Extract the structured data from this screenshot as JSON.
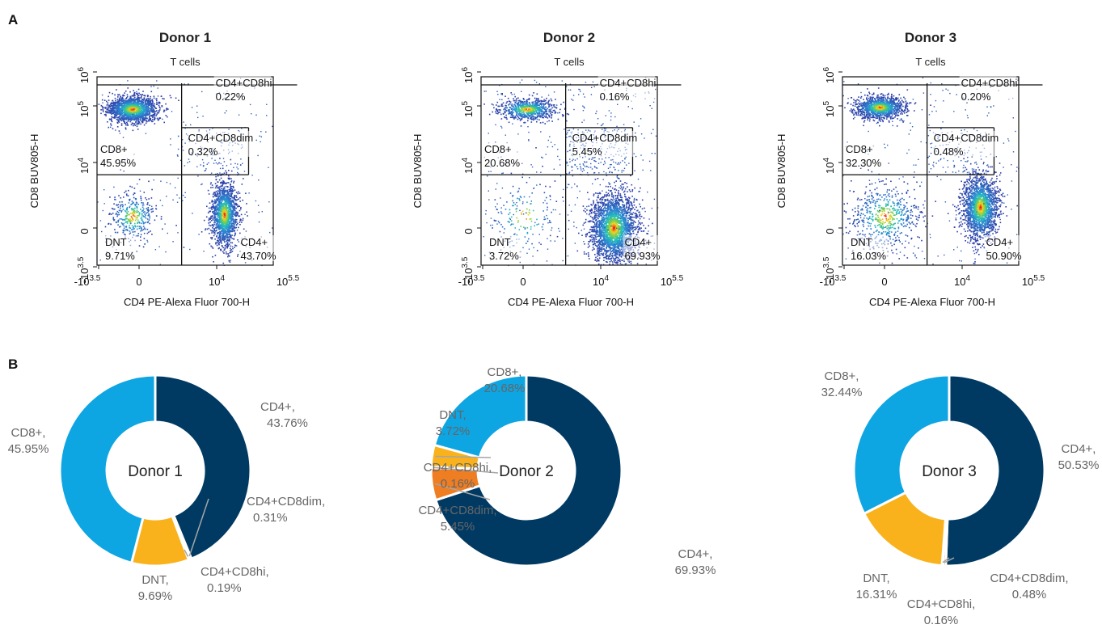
{
  "panel_labels": {
    "a": "A",
    "b": "B"
  },
  "colors": {
    "cd4": "#003a63",
    "cd8": "#0ea5e3",
    "dnt": "#f9b21c",
    "cd4cd8hi": "#f29a18",
    "cd4cd8dim": "#ef7d22",
    "pie_label": "#666666",
    "leader": "#a6a6a6",
    "density_low": "#2c3fa8",
    "density_high": "#e0201a"
  },
  "chart_data": [
    {
      "type": "scatter",
      "panel": "A",
      "donor": "Donor 1",
      "title": "T cells",
      "xlabel": "CD4 PE-Alexa Fluor 700-H",
      "ylabel": "CD8 BUV805-H",
      "x_ticks": [
        "-10^3.5",
        "0",
        "10^4",
        "10^5.5"
      ],
      "y_ticks": [
        "-10^3.5",
        "0",
        "10^4",
        "10^5",
        "10^6"
      ],
      "plot_style": "density pseudocolor dot plot",
      "gates": [
        {
          "name": "CD4+CD8hi",
          "percent": 0.22
        },
        {
          "name": "CD4+CD8dim",
          "percent": 0.32
        },
        {
          "name": "CD8+",
          "percent": 45.95
        },
        {
          "name": "DNT",
          "percent": 9.71
        },
        {
          "name": "CD4+",
          "percent": 43.7
        }
      ],
      "gate_labels": {
        "hi_name": "CD4+CD8hi",
        "hi_val": "0.22%",
        "dim_name": "CD4+CD8dim",
        "dim_val": "0.32%",
        "cd8_name": "CD8+",
        "cd8_val": "45.95%",
        "dnt_name": "DNT",
        "dnt_val": "9.71%",
        "cd4_name": "CD4+",
        "cd4_val": "43.70%"
      }
    },
    {
      "type": "scatter",
      "panel": "A",
      "donor": "Donor 2",
      "title": "T cells",
      "xlabel": "CD4 PE-Alexa Fluor 700-H",
      "ylabel": "CD8 BUV805-H",
      "x_ticks": [
        "-10^3.5",
        "0",
        "10^4",
        "10^5.5"
      ],
      "y_ticks": [
        "-10^3.5",
        "0",
        "10^4",
        "10^5",
        "10^6"
      ],
      "plot_style": "density pseudocolor dot plot",
      "gates": [
        {
          "name": "CD4+CD8hi",
          "percent": 0.16
        },
        {
          "name": "CD4+CD8dim",
          "percent": 5.45
        },
        {
          "name": "CD8+",
          "percent": 20.68
        },
        {
          "name": "DNT",
          "percent": 3.72
        },
        {
          "name": "CD4+",
          "percent": 69.93
        }
      ],
      "gate_labels": {
        "hi_name": "CD4+CD8hi",
        "hi_val": "0.16%",
        "dim_name": "CD4+CD8dim",
        "dim_val": "5.45%",
        "cd8_name": "CD8+",
        "cd8_val": "20.68%",
        "dnt_name": "DNT",
        "dnt_val": "3.72%",
        "cd4_name": "CD4+",
        "cd4_val": "69.93%"
      }
    },
    {
      "type": "scatter",
      "panel": "A",
      "donor": "Donor 3",
      "title": "T cells",
      "xlabel": "CD4 PE-Alexa Fluor 700-H",
      "ylabel": "CD8 BUV805-H",
      "x_ticks": [
        "-10^3.5",
        "0",
        "10^4",
        "10^5.5"
      ],
      "y_ticks": [
        "-10^3.5",
        "0",
        "10^4",
        "10^5",
        "10^6"
      ],
      "plot_style": "density pseudocolor dot plot",
      "gates": [
        {
          "name": "CD4+CD8hi",
          "percent": 0.2
        },
        {
          "name": "CD4+CD8dim",
          "percent": 0.48
        },
        {
          "name": "CD8+",
          "percent": 32.3
        },
        {
          "name": "DNT",
          "percent": 16.03
        },
        {
          "name": "CD4+",
          "percent": 50.9
        }
      ],
      "gate_labels": {
        "hi_name": "CD4+CD8hi",
        "hi_val": "0.20%",
        "dim_name": "CD4+CD8dim",
        "dim_val": "0.48%",
        "cd8_name": "CD8+",
        "cd8_val": "32.30%",
        "dnt_name": "DNT",
        "dnt_val": "16.03%",
        "cd4_name": "CD4+",
        "cd4_val": "50.90%"
      }
    },
    {
      "type": "pie",
      "panel": "B",
      "donor": "Donor 1",
      "center_label": "Donor 1",
      "slices": [
        {
          "name": "CD4+",
          "value": 43.76,
          "label": "CD4+,",
          "value_label": "43.76%",
          "color_key": "cd4"
        },
        {
          "name": "CD4+CD8dim",
          "value": 0.31,
          "label": "CD4+CD8dim,",
          "value_label": "0.31%",
          "color_key": "cd4cd8dim"
        },
        {
          "name": "CD4+CD8hi",
          "value": 0.19,
          "label": "CD4+CD8hi,",
          "value_label": "0.19%",
          "color_key": "cd4cd8hi"
        },
        {
          "name": "DNT",
          "value": 9.69,
          "label": "DNT,",
          "value_label": "9.69%",
          "color_key": "dnt"
        },
        {
          "name": "CD8+",
          "value": 45.95,
          "label": "CD8+,",
          "value_label": "45.95%",
          "color_key": "cd8"
        }
      ]
    },
    {
      "type": "pie",
      "panel": "B",
      "donor": "Donor 2",
      "center_label": "Donor 2",
      "slices": [
        {
          "name": "CD4+",
          "value": 69.93,
          "label": "CD4+,",
          "value_label": "69.93%",
          "color_key": "cd4"
        },
        {
          "name": "CD4+CD8dim",
          "value": 5.45,
          "label": "CD4+CD8dim,",
          "value_label": "5.45%",
          "color_key": "cd4cd8dim"
        },
        {
          "name": "CD4+CD8hi",
          "value": 0.16,
          "label": "CD4+CD8hi,",
          "value_label": "0.16%",
          "color_key": "cd4cd8hi"
        },
        {
          "name": "DNT",
          "value": 3.72,
          "label": "DNT,",
          "value_label": "3.72%",
          "color_key": "dnt"
        },
        {
          "name": "CD8+",
          "value": 20.68,
          "label": "CD8+,",
          "value_label": "20.68%",
          "color_key": "cd8"
        }
      ]
    },
    {
      "type": "pie",
      "panel": "B",
      "donor": "Donor 3",
      "center_label": "Donor 3",
      "slices": [
        {
          "name": "CD4+",
          "value": 50.53,
          "label": "CD4+,",
          "value_label": "50.53%",
          "color_key": "cd4"
        },
        {
          "name": "CD4+CD8dim",
          "value": 0.48,
          "label": "CD4+CD8dim,",
          "value_label": "0.48%",
          "color_key": "cd4cd8dim"
        },
        {
          "name": "CD4+CD8hi",
          "value": 0.16,
          "label": "CD4+CD8hi,",
          "value_label": "0.16%",
          "color_key": "cd4cd8hi"
        },
        {
          "name": "DNT",
          "value": 16.31,
          "label": "DNT,",
          "value_label": "16.31%",
          "color_key": "dnt"
        },
        {
          "name": "CD8+",
          "value": 32.44,
          "label": "CD8+,",
          "value_label": "32.44%",
          "color_key": "cd8"
        }
      ]
    }
  ]
}
